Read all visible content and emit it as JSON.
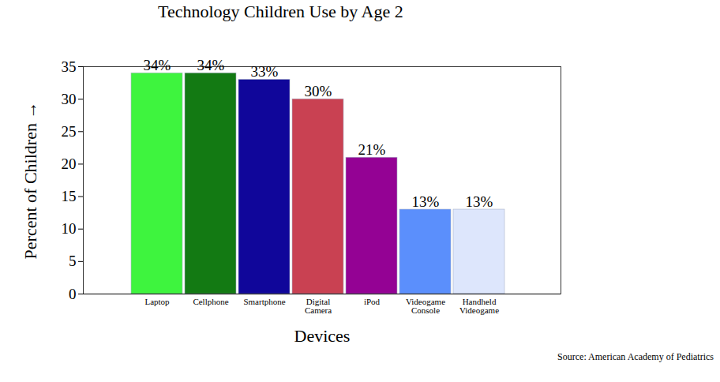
{
  "chart_data": {
    "type": "bar",
    "title": "Technology Children Use by Age 2",
    "x_label": "Devices",
    "y_label": "Percent of Children",
    "caption": "Source: American Academy of Pediatrics",
    "categories": [
      "Laptop",
      "Cellphone",
      "Smartphone",
      "Digital Camera",
      "iPod",
      "Videogame Console",
      "Handheld Videogame"
    ],
    "values": [
      34,
      34,
      33,
      30,
      21,
      13,
      13
    ],
    "value_labels": [
      "34%",
      "34%",
      "33%",
      "30%",
      "21%",
      "13%",
      "13%"
    ],
    "colors": [
      "#3ef43e",
      "#137a13",
      "#10069a",
      "#c94152",
      "#940294",
      "#5b8ffc",
      "#dde6fc"
    ],
    "ylim": [
      0,
      35
    ],
    "yticks": [
      0,
      5,
      10,
      15,
      20,
      25,
      30,
      35
    ],
    "grid": false,
    "data_labels": true
  }
}
